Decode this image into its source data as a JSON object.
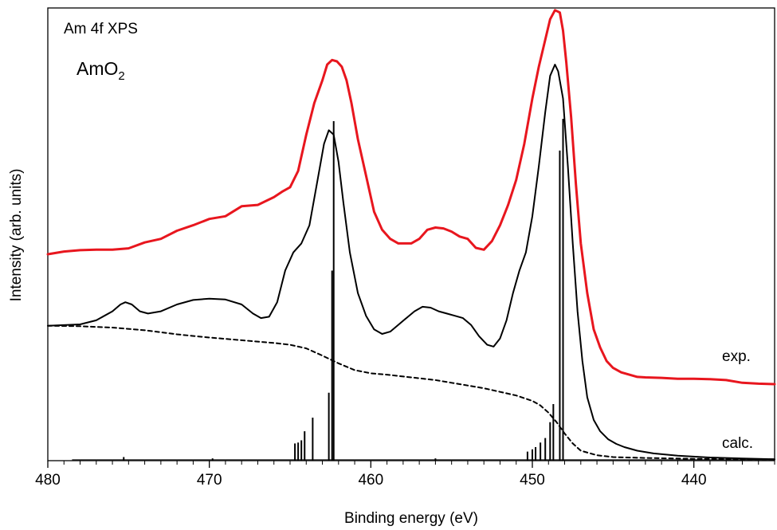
{
  "chart_data": {
    "type": "line",
    "title": "Am 4f XPS",
    "sample_label": {
      "base": "AmO",
      "subscript": "2"
    },
    "xlabel": "Binding energy (eV)",
    "ylabel": "Intensity (arb. units)",
    "xlim": [
      480,
      435
    ],
    "x_reversed": true,
    "ylim": [
      0,
      1
    ],
    "x_ticks": [
      480,
      470,
      460,
      450,
      440
    ],
    "y_ticks": [],
    "grid": false,
    "series": [
      {
        "name": "exp.",
        "color": "#e8161e",
        "x": [
          480,
          479,
          478,
          477,
          476,
          475,
          474,
          473,
          472,
          471,
          470,
          469,
          468,
          467,
          466,
          465.5,
          465,
          464.5,
          464,
          463.5,
          463,
          462.7,
          462.4,
          462.1,
          461.8,
          461.5,
          461.2,
          460.8,
          460.3,
          459.8,
          459.3,
          458.8,
          458.3,
          457.5,
          457,
          456.5,
          456,
          455.5,
          455,
          454.5,
          454,
          453.5,
          453,
          452.5,
          452,
          451.5,
          451,
          450.5,
          450,
          449.6,
          449.2,
          448.9,
          448.6,
          448.3,
          448.1,
          447.9,
          447.6,
          447.3,
          447,
          446.6,
          446.2,
          445.8,
          445.4,
          445,
          444.5,
          444,
          443.5,
          443,
          442,
          441,
          440,
          439,
          438,
          437,
          436,
          435
        ],
        "y": [
          0.456,
          0.462,
          0.465,
          0.466,
          0.466,
          0.469,
          0.482,
          0.49,
          0.508,
          0.52,
          0.534,
          0.54,
          0.562,
          0.565,
          0.582,
          0.594,
          0.604,
          0.64,
          0.72,
          0.79,
          0.84,
          0.875,
          0.885,
          0.882,
          0.87,
          0.84,
          0.79,
          0.71,
          0.63,
          0.55,
          0.51,
          0.49,
          0.48,
          0.48,
          0.49,
          0.51,
          0.515,
          0.513,
          0.506,
          0.495,
          0.49,
          0.47,
          0.466,
          0.485,
          0.52,
          0.565,
          0.62,
          0.7,
          0.8,
          0.87,
          0.93,
          0.975,
          0.995,
          0.99,
          0.95,
          0.88,
          0.76,
          0.61,
          0.48,
          0.37,
          0.29,
          0.25,
          0.22,
          0.205,
          0.195,
          0.19,
          0.185,
          0.184,
          0.183,
          0.181,
          0.181,
          0.18,
          0.178,
          0.172,
          0.17,
          0.169
        ]
      },
      {
        "name": "calc.",
        "color": "#000000",
        "x": [
          480,
          478,
          477,
          476,
          475.5,
          475.2,
          474.8,
          474.3,
          473.8,
          473,
          472,
          471,
          470,
          469,
          468,
          467.3,
          466.8,
          466.3,
          465.8,
          465.3,
          464.8,
          464.3,
          463.8,
          463.3,
          462.9,
          462.6,
          462.3,
          462,
          461.7,
          461.3,
          460.8,
          460.3,
          459.8,
          459.3,
          458.8,
          458.3,
          457.8,
          457.3,
          456.8,
          456.3,
          455.8,
          455.3,
          454.8,
          454.3,
          453.8,
          453.3,
          452.8,
          452.4,
          452,
          451.6,
          451.2,
          450.8,
          450.4,
          450,
          449.6,
          449.2,
          448.9,
          448.6,
          448.4,
          448.1,
          447.8,
          447.5,
          447.2,
          446.9,
          446.6,
          446.2,
          445.8,
          445.3,
          444.8,
          444.3,
          443.5,
          442.5,
          441,
          439,
          437,
          435
        ],
        "y": [
          0.298,
          0.301,
          0.31,
          0.33,
          0.345,
          0.35,
          0.345,
          0.33,
          0.325,
          0.33,
          0.345,
          0.355,
          0.358,
          0.356,
          0.345,
          0.325,
          0.315,
          0.318,
          0.35,
          0.42,
          0.46,
          0.48,
          0.52,
          0.62,
          0.7,
          0.73,
          0.72,
          0.66,
          0.57,
          0.46,
          0.37,
          0.32,
          0.29,
          0.28,
          0.285,
          0.3,
          0.315,
          0.33,
          0.34,
          0.338,
          0.33,
          0.325,
          0.32,
          0.315,
          0.3,
          0.275,
          0.256,
          0.252,
          0.27,
          0.31,
          0.37,
          0.42,
          0.46,
          0.54,
          0.65,
          0.77,
          0.85,
          0.875,
          0.86,
          0.8,
          0.65,
          0.48,
          0.33,
          0.22,
          0.14,
          0.09,
          0.065,
          0.047,
          0.037,
          0.03,
          0.022,
          0.016,
          0.011,
          0.007,
          0.005,
          0.003
        ]
      },
      {
        "name": "",
        "color": "#000000",
        "style": "dashed",
        "x": [
          480,
          478,
          476,
          474,
          472,
          470,
          468,
          466,
          465,
          464,
          463,
          462,
          461,
          460,
          459,
          458,
          457,
          456,
          455,
          454,
          453,
          452,
          451,
          450,
          449.5,
          449,
          448.5,
          448,
          447.5,
          447,
          446,
          445,
          443,
          440,
          437,
          435
        ],
        "y": [
          0.298,
          0.297,
          0.294,
          0.288,
          0.279,
          0.272,
          0.266,
          0.26,
          0.256,
          0.248,
          0.232,
          0.215,
          0.2,
          0.193,
          0.19,
          0.186,
          0.182,
          0.178,
          0.172,
          0.166,
          0.16,
          0.152,
          0.144,
          0.132,
          0.122,
          0.106,
          0.085,
          0.06,
          0.038,
          0.022,
          0.012,
          0.008,
          0.006,
          0.004,
          0.003,
          0.003
        ]
      }
    ],
    "stick_spectrum": {
      "color": "#000000",
      "sticks": [
        {
          "x": 462.3,
          "y": 0.75
        },
        {
          "x": 462.4,
          "y": 0.42
        },
        {
          "x": 462.6,
          "y": 0.15
        },
        {
          "x": 463.6,
          "y": 0.095
        },
        {
          "x": 464.1,
          "y": 0.065
        },
        {
          "x": 464.3,
          "y": 0.045
        },
        {
          "x": 464.5,
          "y": 0.04
        },
        {
          "x": 464.7,
          "y": 0.038
        },
        {
          "x": 448.1,
          "y": 0.755
        },
        {
          "x": 448.3,
          "y": 0.685
        },
        {
          "x": 448.7,
          "y": 0.125
        },
        {
          "x": 448.9,
          "y": 0.085
        },
        {
          "x": 449.2,
          "y": 0.05
        },
        {
          "x": 449.5,
          "y": 0.04
        },
        {
          "x": 449.8,
          "y": 0.03
        },
        {
          "x": 450.0,
          "y": 0.025
        },
        {
          "x": 450.3,
          "y": 0.02
        },
        {
          "x": 475.3,
          "y": 0.008
        },
        {
          "x": 469.8,
          "y": 0.005
        },
        {
          "x": 456.0,
          "y": 0.005
        }
      ]
    },
    "annotations": [
      {
        "text": "exp.",
        "series": "exp."
      },
      {
        "text": "calc.",
        "series": "calc."
      }
    ]
  }
}
